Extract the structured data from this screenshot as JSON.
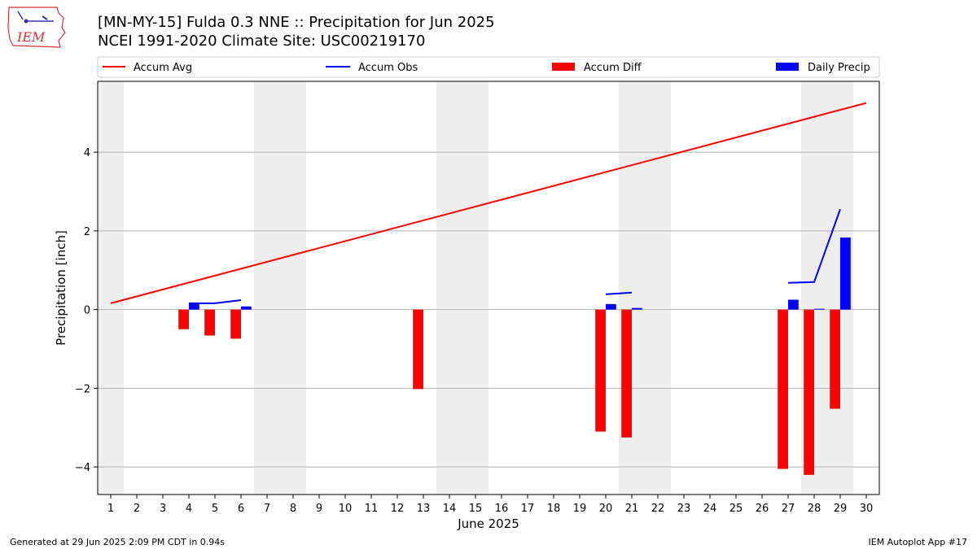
{
  "title_line1": "[MN-MY-15] Fulda 0.3 NNE :: Precipitation for Jun 2025",
  "title_line2": "NCEI 1991-2020 Climate Site: USC00219170",
  "footer_left": "Generated at 29 Jun 2025 2:09 PM CDT in 0.94s",
  "footer_right": "IEM Autoplot App #17",
  "logo_text": "IEM",
  "chart_data": {
    "type": "bar",
    "xlabel": "June 2025",
    "ylabel": "Precipitation [inch]",
    "xlim": [
      0.5,
      30.5
    ],
    "ylim": [
      -4.7,
      5.8
    ],
    "yticks": [
      -4,
      -2,
      0,
      2,
      4
    ],
    "ytick_labels": [
      "−4",
      "−2",
      "0",
      "2",
      "4"
    ],
    "xticks": [
      1,
      2,
      3,
      4,
      5,
      6,
      7,
      8,
      9,
      10,
      11,
      12,
      13,
      14,
      15,
      16,
      17,
      18,
      19,
      20,
      21,
      22,
      23,
      24,
      25,
      26,
      27,
      28,
      29,
      30
    ],
    "grid": "horizontal",
    "legend_position": "top",
    "weekend_shading": [
      [
        0.5,
        1.5
      ],
      [
        6.5,
        8.5
      ],
      [
        13.5,
        15.5
      ],
      [
        20.5,
        22.5
      ],
      [
        27.5,
        29.5
      ]
    ],
    "weekend_color": "#eeeeee",
    "series": [
      {
        "name": "Accum Avg",
        "kind": "line",
        "color": "#ff0000",
        "x": [
          1,
          30
        ],
        "values": [
          0.16,
          5.25
        ]
      },
      {
        "name": "Accum Obs",
        "kind": "line",
        "color": "#0000ff",
        "segments": [
          {
            "x": [
              4,
              5,
              6
            ],
            "values": [
              0.16,
              0.16,
              0.24
            ]
          },
          {
            "x": [
              20,
              21
            ],
            "values": [
              0.39,
              0.43
            ]
          },
          {
            "x": [
              27,
              28,
              29
            ],
            "values": [
              0.68,
              0.7,
              2.55
            ]
          }
        ]
      },
      {
        "name": "Accum Diff",
        "kind": "bar",
        "color": "#ff0000",
        "x": [
          4,
          5,
          6,
          13,
          20,
          21,
          27,
          28,
          29
        ],
        "values": [
          -0.5,
          -0.66,
          -0.74,
          -2.02,
          -3.1,
          -3.25,
          -4.05,
          -4.2,
          -2.52
        ]
      },
      {
        "name": "Daily Precip",
        "kind": "bar",
        "color": "#0000ff",
        "x": [
          4,
          6,
          20,
          21,
          27,
          28,
          29
        ],
        "values": [
          0.16,
          0.08,
          0.14,
          0.04,
          0.25,
          0.02,
          1.83
        ]
      }
    ]
  }
}
